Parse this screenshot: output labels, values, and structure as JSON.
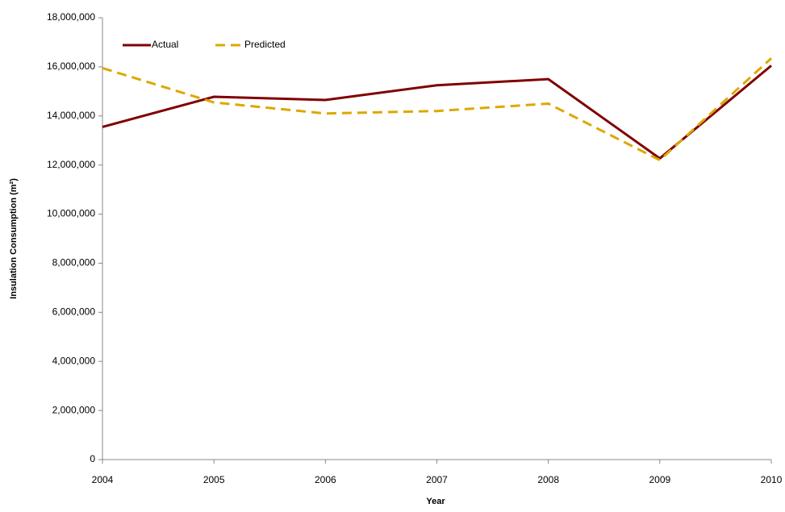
{
  "chart_data": {
    "type": "line",
    "x_label": "Year",
    "y_label": "Insulation Consumption (m²)",
    "x": [
      2004,
      2005,
      2006,
      2007,
      2008,
      2009,
      2010
    ],
    "xlim": [
      2004,
      2010
    ],
    "xticks": [
      2004,
      2005,
      2006,
      2007,
      2008,
      2009,
      2010
    ],
    "ylim": [
      0,
      18000000
    ],
    "yticks": [
      {
        "value": 0,
        "label": "0"
      },
      {
        "value": 2000000,
        "label": "2,000,000"
      },
      {
        "value": 4000000,
        "label": "4,000,000"
      },
      {
        "value": 6000000,
        "label": "6,000,000"
      },
      {
        "value": 8000000,
        "label": "8,000,000"
      },
      {
        "value": 10000000,
        "label": "10,000,000"
      },
      {
        "value": 12000000,
        "label": "12,000,000"
      },
      {
        "value": 14000000,
        "label": "14,000,000"
      },
      {
        "value": 16000000,
        "label": "16,000,000"
      },
      {
        "value": 18000000,
        "label": "18,000,000"
      }
    ],
    "grid": false,
    "legend": "upper left",
    "series": [
      {
        "name": "Actual",
        "color": "#800000",
        "dashed": false,
        "values": [
          13550000,
          14780000,
          14650000,
          15250000,
          15500000,
          12270000,
          16050000
        ]
      },
      {
        "name": "Predicted",
        "color": "#dca800",
        "dashed": true,
        "values": [
          15950000,
          14550000,
          14100000,
          14200000,
          14500000,
          12200000,
          16350000
        ]
      }
    ]
  }
}
